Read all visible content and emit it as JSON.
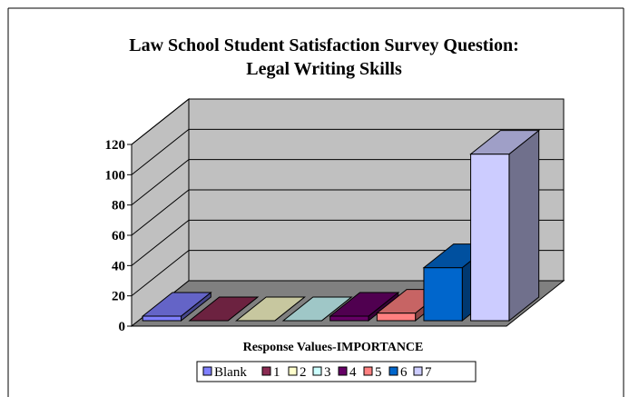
{
  "chart_data": {
    "type": "bar",
    "title_lines": [
      "Law School Student Satisfaction Survey Question:",
      "Legal Writing Skills"
    ],
    "xlabel": "Response Values-IMPORTANCE",
    "ylabel": "",
    "ylim": [
      0,
      120
    ],
    "yticks": [
      "0",
      "20",
      "40",
      "60",
      "80",
      "100",
      "120"
    ],
    "grid": true,
    "legend_position": "bottom",
    "categories": [
      "Blank",
      "1",
      "2",
      "3",
      "4",
      "5",
      "6",
      "7"
    ],
    "values": [
      3,
      0,
      0,
      0,
      3,
      5,
      35,
      110
    ],
    "colors": [
      "#8080ff",
      "#8a2b52",
      "#ffffcc",
      "#ccffff",
      "#660066",
      "#ff8080",
      "#0066cc",
      "#ccccff"
    ]
  }
}
